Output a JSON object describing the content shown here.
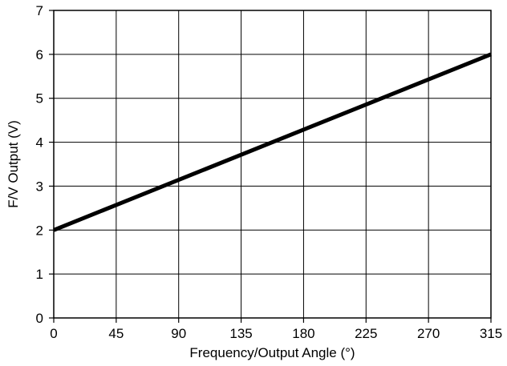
{
  "chart_data": {
    "type": "line",
    "title": "",
    "xlabel": "Frequency/Output Angle (°)",
    "ylabel": "F/V Output (V)",
    "xlim": [
      0,
      315
    ],
    "ylim": [
      0,
      7
    ],
    "xticks": [
      0,
      45,
      90,
      135,
      180,
      225,
      270,
      315
    ],
    "yticks": [
      0,
      1,
      2,
      3,
      4,
      5,
      6,
      7
    ],
    "grid": true,
    "series": [
      {
        "x": [
          0,
          315
        ],
        "y": [
          2,
          6
        ]
      }
    ],
    "line_color": "#000000"
  }
}
